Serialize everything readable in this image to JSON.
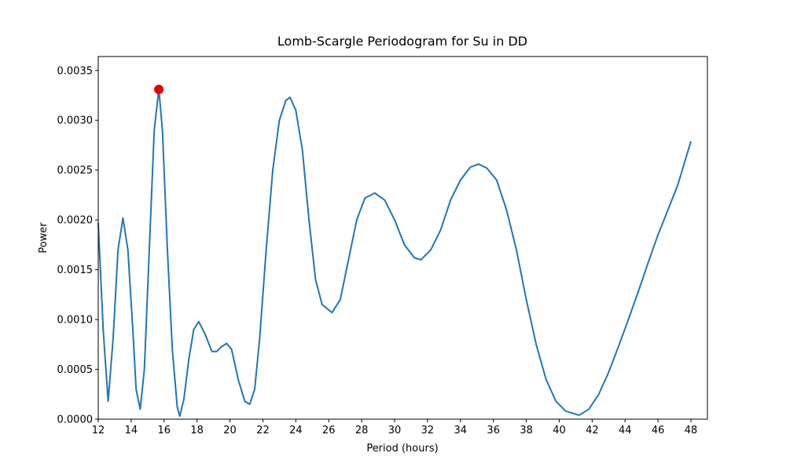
{
  "chart_data": {
    "type": "line",
    "title": "Lomb-Scargle Periodogram for Su in DD",
    "x_label": "Period (hours)",
    "y_label": "Power",
    "x": [
      12.0,
      12.3,
      12.6,
      12.9,
      13.2,
      13.5,
      13.8,
      14.1,
      14.3,
      14.55,
      14.8,
      15.1,
      15.4,
      15.68,
      15.9,
      16.2,
      16.5,
      16.8,
      16.95,
      17.2,
      17.5,
      17.8,
      18.1,
      18.5,
      18.9,
      19.2,
      19.5,
      19.8,
      20.1,
      20.5,
      20.9,
      21.2,
      21.5,
      21.8,
      22.2,
      22.6,
      23.0,
      23.4,
      23.65,
      24.0,
      24.4,
      24.8,
      25.2,
      25.6,
      26.2,
      26.7,
      27.2,
      27.7,
      28.2,
      28.8,
      29.4,
      30.0,
      30.6,
      31.2,
      31.6,
      32.2,
      32.8,
      33.4,
      34.0,
      34.6,
      35.1,
      35.6,
      36.2,
      36.8,
      37.4,
      38.0,
      38.6,
      39.2,
      39.8,
      40.4,
      41.2,
      41.8,
      42.4,
      43.0,
      43.6,
      44.2,
      44.8,
      45.4,
      46.0,
      46.6,
      47.2,
      48.0
    ],
    "series": [
      {
        "color": "#1f77b4",
        "values": [
          0.00197,
          0.0009,
          0.00018,
          0.0008,
          0.0017,
          0.00202,
          0.0017,
          0.0009,
          0.0003,
          0.0001,
          0.0005,
          0.0017,
          0.0029,
          0.00331,
          0.0029,
          0.0017,
          0.0007,
          0.00012,
          3e-05,
          0.0002,
          0.0006,
          0.0009,
          0.00098,
          0.00085,
          0.00068,
          0.00068,
          0.00073,
          0.00076,
          0.0007,
          0.0004,
          0.00018,
          0.00015,
          0.0003,
          0.0008,
          0.0017,
          0.0025,
          0.003,
          0.0032,
          0.00323,
          0.0031,
          0.0027,
          0.002,
          0.0014,
          0.00115,
          0.00107,
          0.0012,
          0.0016,
          0.002,
          0.00222,
          0.00227,
          0.0022,
          0.002,
          0.00175,
          0.00162,
          0.0016,
          0.0017,
          0.0019,
          0.0022,
          0.0024,
          0.00253,
          0.00256,
          0.00252,
          0.0024,
          0.0021,
          0.0017,
          0.0012,
          0.00075,
          0.0004,
          0.00018,
          8e-05,
          4e-05,
          0.0001,
          0.00025,
          0.00047,
          0.00073,
          0.001,
          0.00128,
          0.00157,
          0.00185,
          0.0021,
          0.00235,
          0.00279
        ]
      }
    ],
    "peak": {
      "x": 15.68,
      "y": 0.00331,
      "color": "#e60000"
    },
    "xlim": [
      12,
      49
    ],
    "ylim": [
      0,
      0.00364
    ],
    "xticks": [
      12,
      14,
      16,
      18,
      20,
      22,
      24,
      26,
      28,
      30,
      32,
      34,
      36,
      38,
      40,
      42,
      44,
      46,
      48
    ],
    "yticks": [
      {
        "value": 0,
        "label": "0.0000"
      },
      {
        "value": 0.0005,
        "label": "0.0005"
      },
      {
        "value": 0.001,
        "label": "0.0010"
      },
      {
        "value": 0.0015,
        "label": "0.0015"
      },
      {
        "value": 0.002,
        "label": "0.0020"
      },
      {
        "value": 0.0025,
        "label": "0.0025"
      },
      {
        "value": 0.003,
        "label": "0.0030"
      },
      {
        "value": 0.0035,
        "label": "0.0035"
      }
    ],
    "grid": false
  }
}
